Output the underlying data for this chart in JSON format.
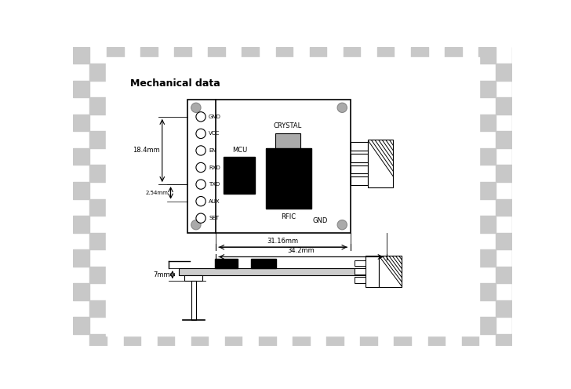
{
  "checker_color": "#c8c8c8",
  "title": "Mechanical data",
  "pin_labels": [
    "GND",
    "VCC",
    "EN",
    "RXD",
    "TXD",
    "AUX",
    "SET"
  ],
  "dim_18_4": "18.4mm",
  "dim_2_54": "2.54mm",
  "dim_31_16": "31.16mm",
  "dim_34_2": "34.2mm",
  "dim_7": "7mm",
  "crystal_color": "#aaaaaa",
  "board_lw": 1.2
}
